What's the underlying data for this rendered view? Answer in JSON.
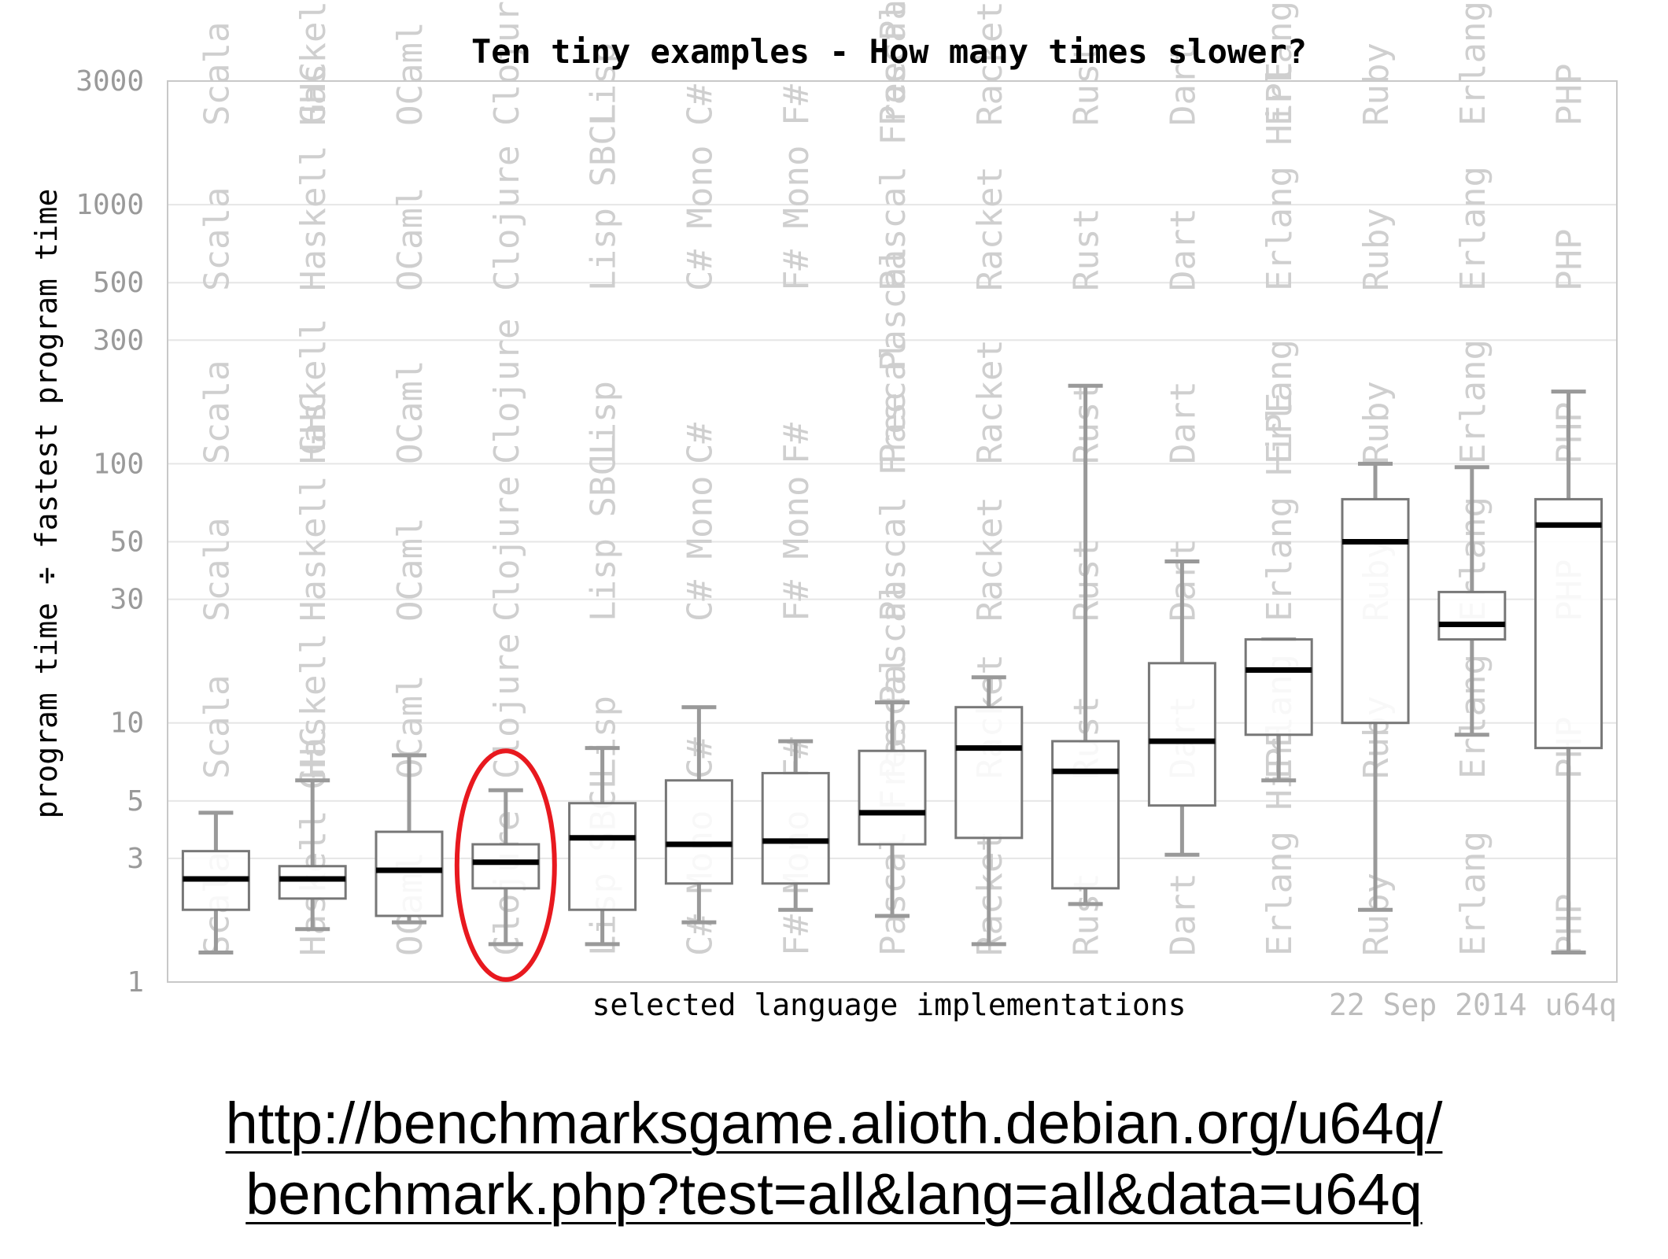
{
  "chart_data": {
    "type": "box",
    "title": "Ten tiny examples - How many times slower?",
    "ylabel": "program time ÷ fastest program time",
    "xlabel": "selected language implementations",
    "date_note": "22 Sep 2014 u64q",
    "y_scale": "log",
    "ylim": [
      1,
      3000
    ],
    "yticks": [
      1,
      3,
      5,
      10,
      30,
      50,
      100,
      300,
      500,
      1000,
      3000
    ],
    "grid": true,
    "categories": [
      "Scala",
      "Haskell GHC",
      "OCaml",
      "Clojure",
      "Lisp SBCL",
      "C# Mono",
      "F# Mono",
      "Pascal Free Pascal",
      "Racket",
      "Rust",
      "Dart",
      "Erlang HiPE",
      "Ruby",
      "Erlang",
      "PHP"
    ],
    "series": [
      {
        "category": "Scala",
        "min": 1.3,
        "q1": 1.9,
        "median": 2.5,
        "q3": 3.2,
        "max": 4.5
      },
      {
        "category": "Haskell GHC",
        "min": 1.6,
        "q1": 2.1,
        "median": 2.5,
        "q3": 2.8,
        "max": 6.0
      },
      {
        "category": "OCaml",
        "min": 1.7,
        "q1": 1.8,
        "median": 2.7,
        "q3": 3.8,
        "max": 7.5
      },
      {
        "category": "Clojure",
        "min": 1.4,
        "q1": 2.3,
        "median": 2.9,
        "q3": 3.4,
        "max": 5.5
      },
      {
        "category": "Lisp SBCL",
        "min": 1.4,
        "q1": 1.9,
        "median": 3.6,
        "q3": 4.9,
        "max": 8.0
      },
      {
        "category": "C# Mono",
        "min": 1.7,
        "q1": 2.4,
        "median": 3.4,
        "q3": 6.0,
        "max": 11.5
      },
      {
        "category": "F# Mono",
        "min": 1.9,
        "q1": 2.4,
        "median": 3.5,
        "q3": 6.4,
        "max": 8.5
      },
      {
        "category": "Pascal Free Pascal",
        "min": 1.8,
        "q1": 3.4,
        "median": 4.5,
        "q3": 7.8,
        "max": 12.0
      },
      {
        "category": "Racket",
        "min": 1.4,
        "q1": 3.6,
        "median": 8.0,
        "q3": 11.5,
        "max": 15.0
      },
      {
        "category": "Rust",
        "min": 2.0,
        "q1": 2.3,
        "median": 6.5,
        "q3": 8.5,
        "max": 200
      },
      {
        "category": "Dart",
        "min": 3.1,
        "q1": 4.8,
        "median": 8.5,
        "q3": 17.0,
        "max": 42
      },
      {
        "category": "Erlang HiPE",
        "min": 6.0,
        "q1": 9.0,
        "median": 16.0,
        "q3": 21.0,
        "max": 21.0
      },
      {
        "category": "Ruby",
        "min": 1.9,
        "q1": 10.0,
        "median": 50,
        "q3": 73,
        "max": 100
      },
      {
        "category": "Erlang",
        "min": 9.0,
        "q1": 21.0,
        "median": 24.0,
        "q3": 32.0,
        "max": 97
      },
      {
        "category": "PHP",
        "min": 1.3,
        "q1": 8.0,
        "median": 58,
        "q3": 73,
        "max": 190
      }
    ],
    "highlighted_category": "Clojure",
    "highlight_color": "#e8191f"
  },
  "url": {
    "line1": "http://benchmarksgame.alioth.debian.org/u64q/",
    "line2": "benchmark.php?test=all&lang=all&data=u64q"
  }
}
